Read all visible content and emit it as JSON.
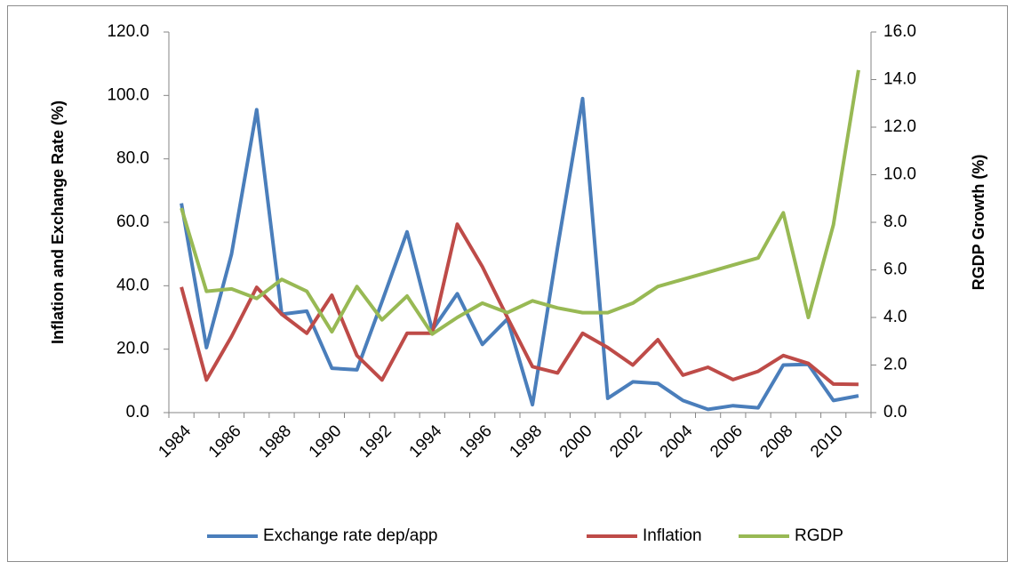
{
  "chart_data": {
    "type": "line",
    "categories": [
      "1984",
      null,
      "1986",
      null,
      "1988",
      null,
      "1990",
      null,
      "1992",
      null,
      "1994",
      null,
      "1996",
      null,
      "1998",
      null,
      "2000",
      null,
      "2002",
      null,
      "2004",
      null,
      "2006",
      null,
      "2008",
      null,
      "2010",
      null
    ],
    "y_label": "Inflation and Exchange  Rate (%)",
    "y2_label": "RGDP Growth (%)",
    "ylim": [
      0,
      120
    ],
    "yticks": [
      {
        "value": 0,
        "label": "0.0"
      },
      {
        "value": 20,
        "label": "20.0"
      },
      {
        "value": 40,
        "label": "40.0"
      },
      {
        "value": 60,
        "label": "60.0"
      },
      {
        "value": 80,
        "label": "80.0"
      },
      {
        "value": 100,
        "label": "100.0"
      },
      {
        "value": 120,
        "label": "120.0"
      }
    ],
    "y2lim": [
      0,
      16
    ],
    "y2ticks": [
      {
        "value": 0,
        "label": "0.0"
      },
      {
        "value": 2,
        "label": "2.0"
      },
      {
        "value": 4,
        "label": "4.0"
      },
      {
        "value": 6,
        "label": "6.0"
      },
      {
        "value": 8,
        "label": "8.0"
      },
      {
        "value": 10,
        "label": "10.0"
      },
      {
        "value": 12,
        "label": "12.0"
      },
      {
        "value": 14,
        "label": "14.0"
      },
      {
        "value": 16,
        "label": "16.0"
      }
    ],
    "grid": false,
    "legend": "bottom",
    "series": [
      {
        "name": "Exchange rate dep/app",
        "color": "#4a7ebb",
        "values": [
          66,
          20.5,
          50,
          95.5,
          31,
          32,
          14,
          13.5,
          35,
          57,
          26,
          37.5,
          21.5,
          29.5,
          2.5,
          52,
          99,
          4.5,
          9.7,
          9.2,
          3.8,
          1,
          2.2,
          1.5,
          15,
          15.2,
          3.8,
          5.3
        ]
      },
      {
        "name": "Inflation",
        "color": "#be4b48",
        "values": [
          39.6,
          10.3,
          24,
          39.5,
          31,
          25,
          37,
          18,
          10.3,
          25,
          25,
          59.4,
          46,
          30,
          14.5,
          12.5,
          25,
          20.5,
          15,
          23,
          11.8,
          14.3,
          10.4,
          13,
          18,
          15.5,
          9,
          8.9
        ]
      },
      {
        "name": "RGDP",
        "color": "#98b954",
        "axis": "y2",
        "values": [
          8.6,
          5.1,
          5.2,
          4.8,
          5.6,
          5.1,
          3.4,
          5.3,
          3.9,
          4.9,
          3.3,
          4.0,
          4.6,
          4.2,
          4.7,
          4.4,
          4.2,
          4.2,
          4.6,
          5.3,
          5.6,
          5.9,
          6.2,
          6.5,
          8.4,
          4.0,
          7.9,
          14.4
        ]
      }
    ]
  }
}
